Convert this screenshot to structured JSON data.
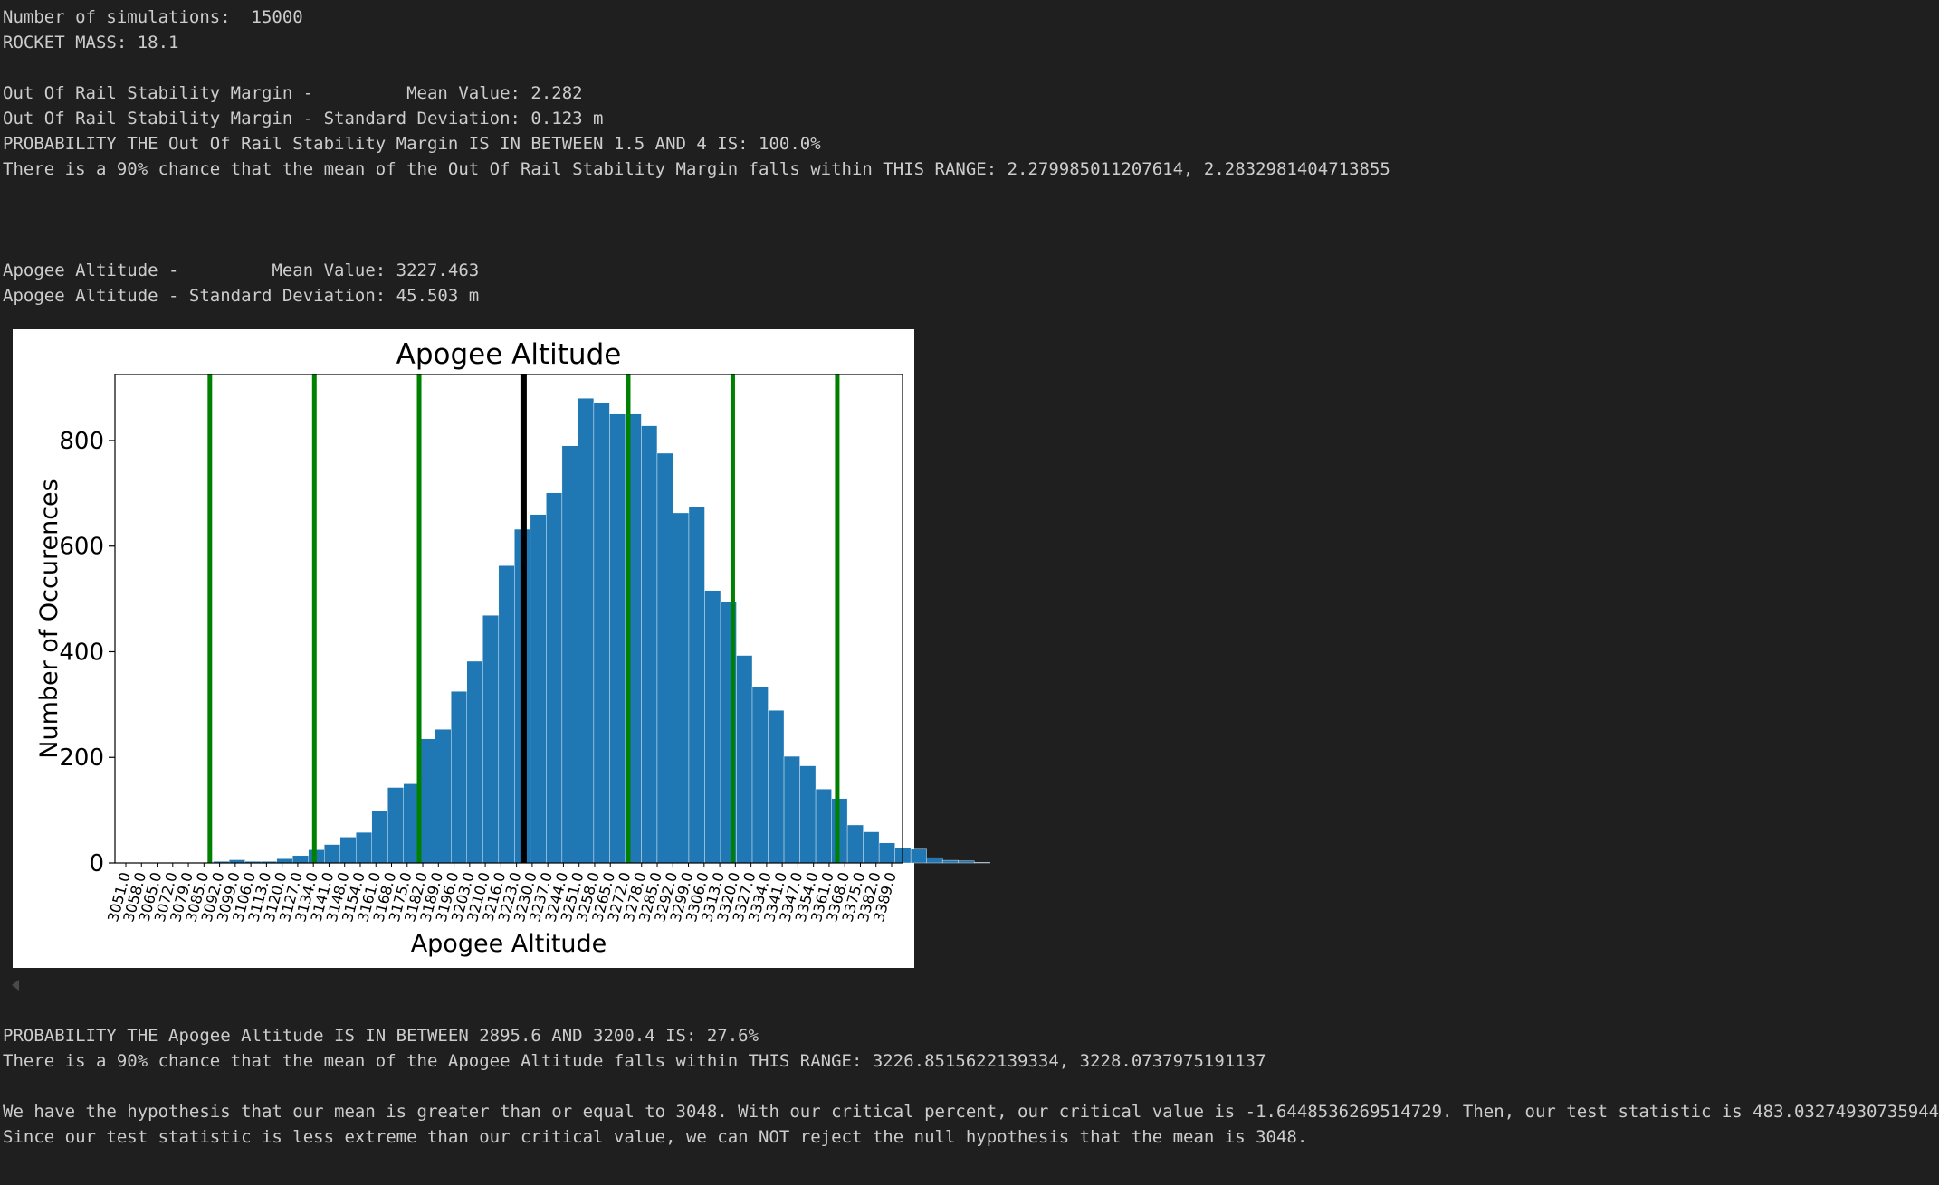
{
  "output": {
    "lines_top": [
      "Number of simulations:  15000",
      "ROCKET MASS: 18.1",
      "",
      "Out Of Rail Stability Margin -         Mean Value: 2.282",
      "Out Of Rail Stability Margin - Standard Deviation: 0.123 m",
      "PROBABILITY THE Out Of Rail Stability Margin IS IN BETWEEN 1.5 AND 4 IS: 100.0%",
      "There is a 90% chance that the mean of the Out Of Rail Stability Margin falls within THIS RANGE: 2.279985011207614, 2.2832981404713855",
      "",
      "",
      "",
      "Apogee Altitude -         Mean Value: 3227.463",
      "Apogee Altitude - Standard Deviation: 45.503 m"
    ],
    "lines_bottom": [
      "PROBABILITY THE Apogee Altitude IS IN BETWEEN 2895.6 AND 3200.4 IS: 27.6%",
      "There is a 90% chance that the mean of the Apogee Altitude falls within THIS RANGE: 3226.8515622139334, 3228.0737975191137",
      "",
      "We have the hypothesis that our mean is greater than or equal to 3048. With our critical percent, our critical value is -1.6448536269514729. Then, our test statistic is 483.03274930735944",
      "Since our test statistic is less extreme than our critical value, we can NOT reject the null hypothesis that the mean is 3048."
    ]
  },
  "chart_data": {
    "type": "bar",
    "title": "Apogee Altitude",
    "xlabel": "Apogee Altitude",
    "ylabel": "Number of Occurences",
    "bin_start": 3051.0,
    "bin_width": 6.9,
    "values": [
      0,
      0,
      0,
      1,
      1,
      1,
      3,
      6,
      3,
      3,
      8,
      14,
      25,
      35,
      49,
      58,
      99,
      143,
      150,
      235,
      253,
      325,
      382,
      469,
      563,
      632,
      660,
      701,
      790,
      880,
      872,
      850,
      850,
      828,
      776,
      663,
      674,
      516,
      495,
      393,
      333,
      289,
      202,
      184,
      140,
      122,
      72,
      59,
      38,
      29,
      26,
      10,
      5,
      4,
      1,
      0,
      0
    ],
    "tick_labels": [
      "3051.0",
      "3058.0",
      "3065.0",
      "3072.0",
      "3079.0",
      "3085.0",
      "3092.0",
      "3099.0",
      "3106.0",
      "3113.0",
      "3120.0",
      "3127.0",
      "3134.0",
      "3141.0",
      "3148.0",
      "3154.0",
      "3161.0",
      "3168.0",
      "3175.0",
      "3182.0",
      "3189.0",
      "3196.0",
      "3203.0",
      "3210.0",
      "3216.0",
      "3223.0",
      "3230.0",
      "3237.0",
      "3244.0",
      "3251.0",
      "3258.0",
      "3265.0",
      "3272.0",
      "3278.0",
      "3285.0",
      "3292.0",
      "3299.0",
      "3306.0",
      "3313.0",
      "3320.0",
      "3327.0",
      "3334.0",
      "3341.0",
      "3347.0",
      "3354.0",
      "3361.0",
      "3368.0",
      "3375.0",
      "3382.0",
      "3389.0"
    ],
    "xlim": [
      3049.6,
      3392.4
    ],
    "ylim": [
      0,
      925
    ],
    "yticks": [
      0,
      200,
      400,
      600,
      800
    ],
    "mean_line": 3227.463,
    "sigma_lines": [
      3090.9,
      3136.4,
      3182.0,
      3273.0,
      3318.5,
      3364.0
    ],
    "colors": {
      "bar": "#1f77b4",
      "sigma_line": "#008000",
      "mean_line": "#000000"
    }
  }
}
